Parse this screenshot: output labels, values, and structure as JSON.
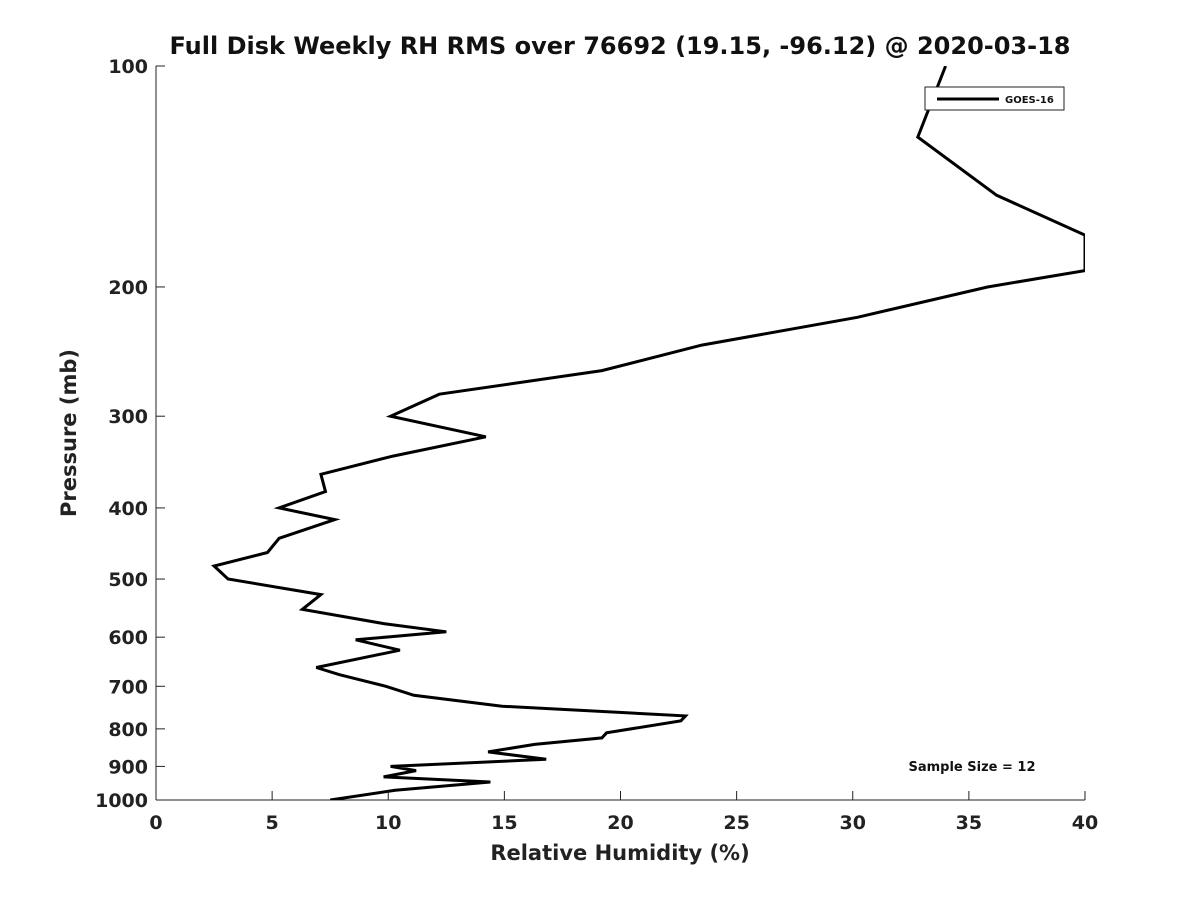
{
  "chart_data": {
    "type": "line",
    "title": "Full Disk Weekly RH RMS over 76692 (19.15, -96.12) @ 2020-03-18",
    "xlabel": "Relative Humidity (%)",
    "ylabel": "Pressure (mb)",
    "xlim": [
      0,
      40
    ],
    "ylim": [
      1000,
      100
    ],
    "y_scale": "log",
    "y_reversed": true,
    "grid": false,
    "legend_position": "top-right",
    "x_ticks": [
      "0",
      "5",
      "10",
      "15",
      "20",
      "25",
      "30",
      "35",
      "40"
    ],
    "x_tick_values": [
      0,
      5,
      10,
      15,
      20,
      25,
      30,
      35,
      40
    ],
    "y_ticks": [
      "100",
      "200",
      "300",
      "400",
      "500",
      "600",
      "700",
      "800",
      "900",
      "1000"
    ],
    "y_tick_values": [
      100,
      200,
      300,
      400,
      500,
      600,
      700,
      800,
      900,
      1000
    ],
    "annotation": "Sample Size = 12",
    "series": [
      {
        "name": "GOES-16",
        "color": "#000000",
        "points": [
          [
            34.0,
            100
          ],
          [
            32.8,
            125
          ],
          [
            36.2,
            150
          ],
          [
            40.0,
            170
          ],
          [
            40.0,
            190
          ],
          [
            35.8,
            200
          ],
          [
            30.2,
            220
          ],
          [
            23.5,
            240
          ],
          [
            19.2,
            260
          ],
          [
            12.2,
            280
          ],
          [
            10.1,
            300
          ],
          [
            14.2,
            320
          ],
          [
            10.2,
            340
          ],
          [
            7.1,
            360
          ],
          [
            7.3,
            380
          ],
          [
            5.3,
            400
          ],
          [
            7.7,
            415
          ],
          [
            5.3,
            440
          ],
          [
            4.8,
            460
          ],
          [
            2.5,
            480
          ],
          [
            3.1,
            500
          ],
          [
            7.1,
            525
          ],
          [
            6.3,
            550
          ],
          [
            9.8,
            575
          ],
          [
            12.5,
            590
          ],
          [
            8.6,
            605
          ],
          [
            10.5,
            625
          ],
          [
            6.9,
            660
          ],
          [
            7.9,
            675
          ],
          [
            9.9,
            700
          ],
          [
            11.1,
            720
          ],
          [
            14.9,
            745
          ],
          [
            22.8,
            768
          ],
          [
            22.6,
            780
          ],
          [
            19.4,
            810
          ],
          [
            19.2,
            823
          ],
          [
            16.3,
            840
          ],
          [
            14.3,
            860
          ],
          [
            16.8,
            880
          ],
          [
            10.1,
            900
          ],
          [
            11.2,
            912
          ],
          [
            9.8,
            930
          ],
          [
            14.4,
            945
          ],
          [
            10.3,
            970
          ],
          [
            7.5,
            1000
          ]
        ]
      }
    ]
  }
}
